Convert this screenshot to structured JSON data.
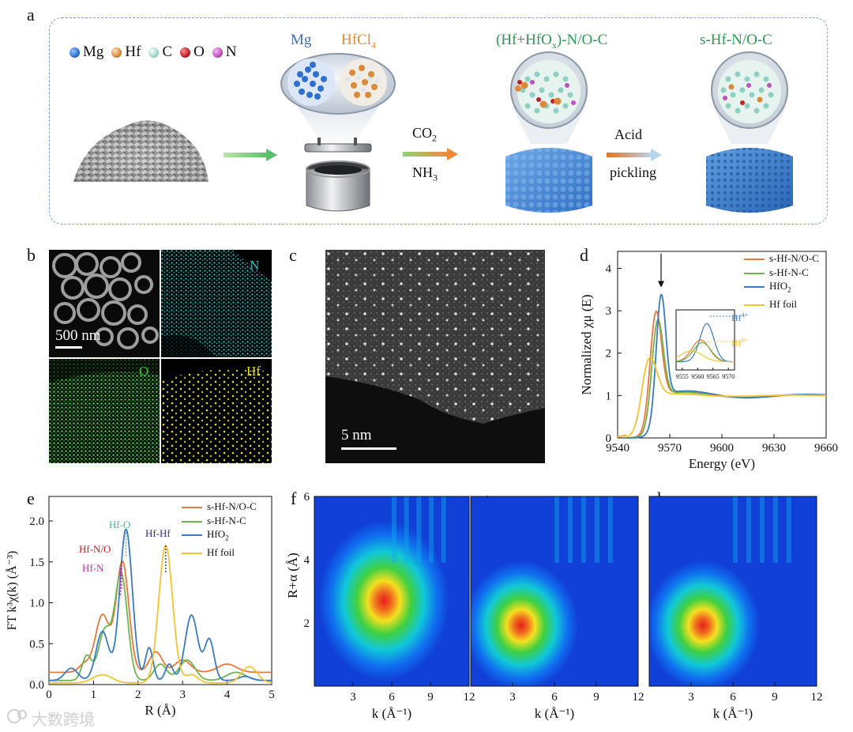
{
  "panel_labels": {
    "a": "a",
    "b": "b",
    "c": "c",
    "d": "d",
    "e": "e",
    "f": "f",
    "g": "g",
    "h": "h"
  },
  "panel_a": {
    "legend": [
      {
        "name": "Mg",
        "color": "#2a6fd0"
      },
      {
        "name": "Hf",
        "color": "#d98a3a"
      },
      {
        "name": "C",
        "color": "#9fd8cc"
      },
      {
        "name": "O",
        "color": "#c0202a"
      },
      {
        "name": "N",
        "color": "#c050c0"
      }
    ],
    "mg_label": "Mg",
    "hfcl_label": "HfCl",
    "hfcl_sub": "4",
    "stage2_title_a": "(Hf+HfO",
    "stage2_title_sub": "x",
    "stage2_title_b": ")-N/O-C",
    "stage3_title": "s-Hf-N/O-C",
    "arrow2_top": "CO",
    "arrow2_top_sub": "2",
    "arrow2_bottom": "NH",
    "arrow2_bottom_sub": "3",
    "arrow3_top": "Acid",
    "arrow3_bottom": "pickling"
  },
  "panel_b": {
    "scale_bar": "500 nm",
    "maps": [
      {
        "label": "N",
        "color": "#2fc8c8"
      },
      {
        "label": "O",
        "color": "#3dcc3d"
      },
      {
        "label": "Hf",
        "color": "#e8e020"
      }
    ]
  },
  "panel_c": {
    "scale_bar": "5 nm"
  },
  "panel_d": {
    "chart_data": {
      "type": "line",
      "xlabel": "Energy (eV)",
      "ylabel": "Normalized χμ (E)",
      "xlim": [
        9540,
        9660
      ],
      "ylim": [
        0,
        4.4
      ],
      "xticks": [
        9540,
        9570,
        9600,
        9630,
        9660
      ],
      "yticks": [
        0,
        1,
        2,
        3,
        4
      ],
      "series": [
        {
          "name": "s-Hf-N/O-C",
          "color": "#e8773a",
          "peak_x": 9562,
          "peak_y": 3.1
        },
        {
          "name": "s-Hf-N-C",
          "color": "#6cb650",
          "peak_x": 9563,
          "peak_y": 2.9
        },
        {
          "name": "HfO2",
          "color": "#3a7abf",
          "peak_x": 9565,
          "peak_y": 3.5
        },
        {
          "name": "Hf foil",
          "color": "#f4c430",
          "peak_x": 9558,
          "peak_y": 2.0
        }
      ],
      "inset": {
        "xticks": [
          9555,
          9560,
          9565,
          9570
        ],
        "labels": [
          "Hf4+",
          "Hf0+"
        ]
      }
    },
    "legend": [
      "s-Hf-N/O-C",
      "s-Hf-N-C",
      "HfO",
      "Hf foil"
    ],
    "legend_hfo2_sub": "2",
    "inset_hf4": "Hf",
    "inset_hf4_sup": "4+",
    "inset_hf0": "Hf",
    "inset_hf0_sup": "0+"
  },
  "panel_e": {
    "chart_data": {
      "type": "line",
      "xlabel": "R (Å)",
      "ylabel": "FT k³χ(k) (Å⁻³)",
      "xlim": [
        0,
        5
      ],
      "ylim": [
        0,
        2.3
      ],
      "xticks": [
        0,
        1,
        2,
        3,
        4,
        5
      ],
      "yticks": [
        0.0,
        0.5,
        1.0,
        1.5,
        2.0
      ],
      "series": [
        {
          "name": "s-Hf-N/O-C",
          "color": "#e8773a",
          "peak_x": 1.65,
          "peak_y": 1.5
        },
        {
          "name": "s-Hf-N-C",
          "color": "#6cb650",
          "peak_x": 1.62,
          "peak_y": 1.42
        },
        {
          "name": "HfO2",
          "color": "#3a7abf",
          "peak_x": 1.73,
          "peak_y": 1.9
        },
        {
          "name": "Hf foil",
          "color": "#f4c430",
          "peak_x": 2.62,
          "peak_y": 1.7
        }
      ],
      "annotations": [
        "Hf-O",
        "Hf-N/O",
        "Hf-N",
        "Hf-Hf"
      ]
    },
    "legend": [
      "s-Hf-N/O-C",
      "s-Hf-N-C",
      "HfO",
      "Hf foil"
    ],
    "legend_hfo2_sub": "2",
    "ann_hfo": "Hf-O",
    "ann_hfno": "Hf-N/O",
    "ann_hfn": "Hf-N",
    "ann_hfhf": "Hf-Hf"
  },
  "panel_wt": {
    "ylabel": "R+α (Å)",
    "xlabel": "k (Å⁻¹)",
    "xticks": [
      "3",
      "6",
      "9",
      "12"
    ],
    "yticks": [
      "2",
      "4",
      "6"
    ]
  },
  "watermark": "大数跨境"
}
